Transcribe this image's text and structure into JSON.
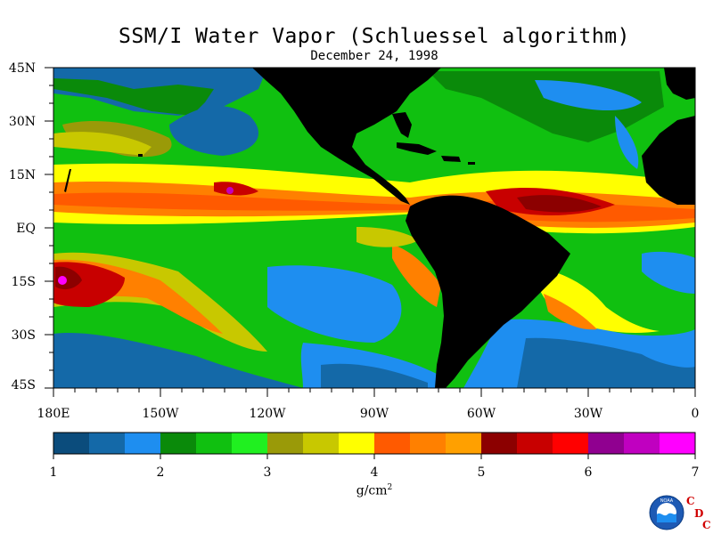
{
  "title": "SSM/I Water Vapor (Schluessel algorithm)",
  "date": "December 24, 1998",
  "lat_labels": [
    "45N",
    "30N",
    "15N",
    "EQ",
    "15S",
    "30S",
    "45S"
  ],
  "lon_labels": [
    "180E",
    "150W",
    "120W",
    "90W",
    "60W",
    "30W",
    "0"
  ],
  "colorbar": {
    "tick_labels": [
      "1",
      "2",
      "3",
      "4",
      "5",
      "6",
      "7"
    ],
    "units_prefix": "g/cm",
    "units_exp": "2",
    "colors": [
      "#0b4c7c",
      "#1469a8",
      "#1e8ef0",
      "#0a8a0a",
      "#10c010",
      "#20f020",
      "#9a9a08",
      "#c8c800",
      "#ffff00",
      "#ff5a00",
      "#ff8000",
      "#ffa000",
      "#8c0000",
      "#c80000",
      "#ff0000",
      "#900090",
      "#c000c0",
      "#ff00ff"
    ]
  },
  "logo": {
    "name": "noaa-logo",
    "org_text": "NOAA",
    "cdc_letters": [
      "C",
      "D",
      "C"
    ]
  }
}
